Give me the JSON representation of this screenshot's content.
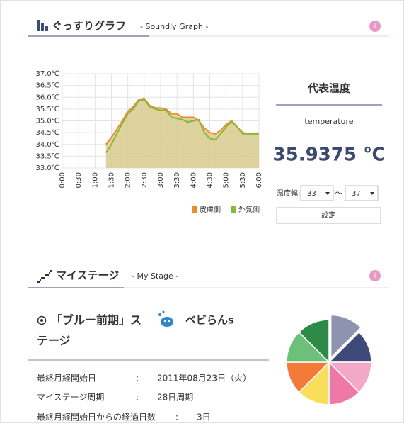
{
  "graph_header": {
    "title": "ぐっすりグラフ",
    "subtitle": "- Soundly Graph -",
    "info": "i"
  },
  "chart_data": [
    {
      "type": "line",
      "x": [
        80,
        90,
        100,
        110,
        120,
        130,
        140,
        150,
        160,
        170,
        180,
        190,
        200,
        210,
        220,
        230,
        240,
        250,
        260,
        270,
        280,
        290,
        300,
        310,
        320,
        330,
        340,
        350,
        360
      ],
      "series": [
        {
          "name": "皮膚側",
          "color": "#f08a2c",
          "values": [
            34.0,
            34.3,
            34.65,
            35.0,
            35.4,
            35.6,
            35.9,
            35.95,
            35.65,
            35.55,
            35.55,
            35.5,
            35.3,
            35.3,
            35.15,
            35.15,
            35.15,
            35.0,
            34.7,
            34.5,
            34.45,
            34.6,
            34.85,
            35.0,
            34.75,
            34.5,
            34.45,
            34.45,
            34.45
          ]
        },
        {
          "name": "外気側",
          "color": "#86b83a",
          "values": [
            33.65,
            34.0,
            34.45,
            34.9,
            35.3,
            35.5,
            35.85,
            35.9,
            35.6,
            35.5,
            35.45,
            35.45,
            35.15,
            35.1,
            35.05,
            34.95,
            35.0,
            35.05,
            34.5,
            34.25,
            34.2,
            34.45,
            34.75,
            34.95,
            34.75,
            34.45,
            34.45,
            34.45,
            34.45
          ]
        }
      ],
      "area_color": "#d8ca8e",
      "xlim": [
        0,
        360
      ],
      "xticks": [
        {
          "value": 0,
          "label": "0:00"
        },
        {
          "value": 30,
          "label": "0:30"
        },
        {
          "value": 60,
          "label": "1:00"
        },
        {
          "value": 90,
          "label": "1:30"
        },
        {
          "value": 120,
          "label": "2:00"
        },
        {
          "value": 150,
          "label": "2:30"
        },
        {
          "value": 180,
          "label": "3:00"
        },
        {
          "value": 210,
          "label": "3:30"
        },
        {
          "value": 240,
          "label": "4:00"
        },
        {
          "value": 270,
          "label": "4:30"
        },
        {
          "value": 300,
          "label": "5:00"
        },
        {
          "value": 330,
          "label": "5:30"
        },
        {
          "value": 360,
          "label": "6:00"
        }
      ],
      "ylim": [
        33.0,
        37.0
      ],
      "yticks": [
        {
          "value": 33.0,
          "label": "33.0℃"
        },
        {
          "value": 33.5,
          "label": "33.5℃"
        },
        {
          "value": 34.0,
          "label": "34.0℃"
        },
        {
          "value": 34.5,
          "label": "34.5℃"
        },
        {
          "value": 35.0,
          "label": "35.0℃"
        },
        {
          "value": 35.5,
          "label": "35.5℃"
        },
        {
          "value": 36.0,
          "label": "36.0℃"
        },
        {
          "value": 36.5,
          "label": "36.5℃"
        },
        {
          "value": 37.0,
          "label": "37.0℃"
        }
      ],
      "grid": true,
      "legend": "bottom-right"
    },
    {
      "type": "pie",
      "values": [
        12.5,
        12.5,
        12.5,
        12.5,
        12.5,
        12.5,
        12.5,
        12.5
      ],
      "colors": [
        "#8e93b0",
        "#3d4a7a",
        "#f4a8c8",
        "#ef79a6",
        "#f8de5a",
        "#f47a3a",
        "#6cc07a",
        "#2e8b45"
      ]
    }
  ],
  "temperature_panel": {
    "title": "代表温度",
    "subtitle": "temperature",
    "value": "35.9375 ℃",
    "range_label": "温度幅:",
    "range_min": "33",
    "range_sep": "～",
    "range_max": "37",
    "button": "設定"
  },
  "stage_header": {
    "title": "マイステージ",
    "subtitle": "- My Stage -",
    "info": "i"
  },
  "stage": {
    "name": "「ブルー前期」ステージ",
    "baby": "ベビらんs",
    "rows": [
      {
        "label": "最終月経開始日",
        "sep": ":",
        "value": "2011年08月23日（火）"
      },
      {
        "label": "マイステージ周期",
        "sep": ":",
        "value": "28日周期"
      },
      {
        "label": "最終月経開始日からの経過日数",
        "sep": ":",
        "value": "3日"
      }
    ]
  }
}
